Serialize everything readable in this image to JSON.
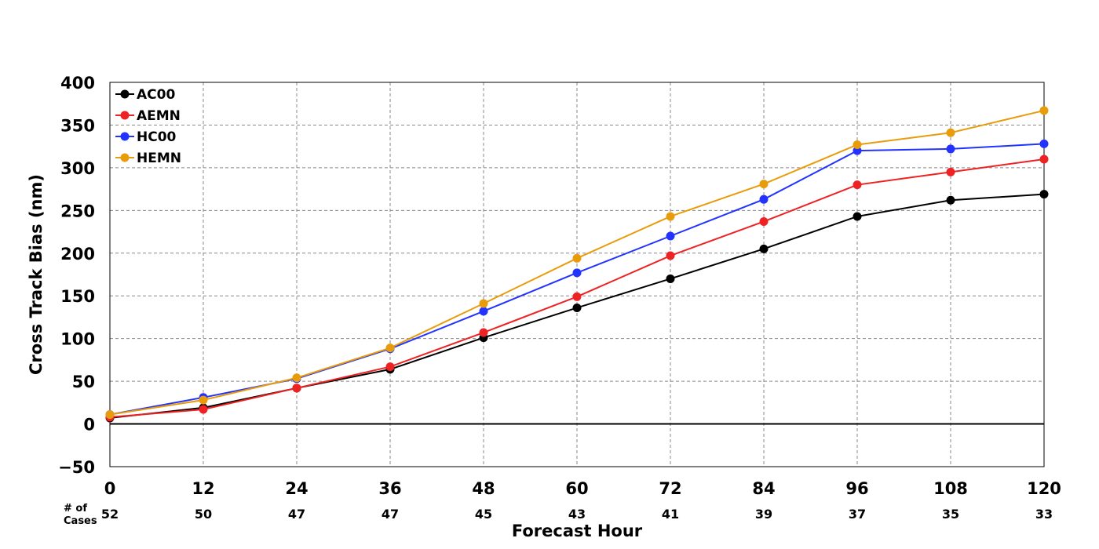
{
  "chart_data": {
    "type": "line",
    "xlabel": "Forecast Hour",
    "ylabel": "Cross Track Bias (nm)",
    "x": [
      0,
      12,
      24,
      36,
      48,
      60,
      72,
      84,
      96,
      108,
      120
    ],
    "xlim": [
      0,
      120
    ],
    "ylim": [
      -50,
      400
    ],
    "yticks": [
      -50,
      0,
      50,
      100,
      150,
      200,
      250,
      300,
      350,
      400
    ],
    "ytick_labels": [
      "−50",
      "0",
      "50",
      "100",
      "150",
      "200",
      "250",
      "300",
      "350",
      "400"
    ],
    "xtick_labels": [
      "0",
      "12",
      "24",
      "36",
      "48",
      "60",
      "72",
      "84",
      "96",
      "108",
      "120"
    ],
    "grid": true,
    "legend_position": "top-left",
    "cases_label_line1": "# of",
    "cases_label_line2": "Cases",
    "cases": [
      "52",
      "50",
      "47",
      "47",
      "45",
      "43",
      "41",
      "39",
      "37",
      "35",
      "33"
    ],
    "series": [
      {
        "name": "AC00",
        "color": "#000000",
        "values": [
          7,
          19,
          42,
          64,
          101,
          136,
          170,
          205,
          243,
          262,
          269
        ]
      },
      {
        "name": "AEMN",
        "color": "#ee2222",
        "values": [
          8,
          17,
          42,
          67,
          107,
          149,
          197,
          237,
          280,
          295,
          310
        ]
      },
      {
        "name": "HC00",
        "color": "#2233ff",
        "values": [
          11,
          31,
          53,
          88,
          132,
          177,
          220,
          263,
          320,
          322,
          328
        ]
      },
      {
        "name": "HEMN",
        "color": "#e89c0c",
        "values": [
          11,
          28,
          54,
          89,
          141,
          194,
          243,
          281,
          327,
          341,
          367
        ]
      }
    ]
  }
}
